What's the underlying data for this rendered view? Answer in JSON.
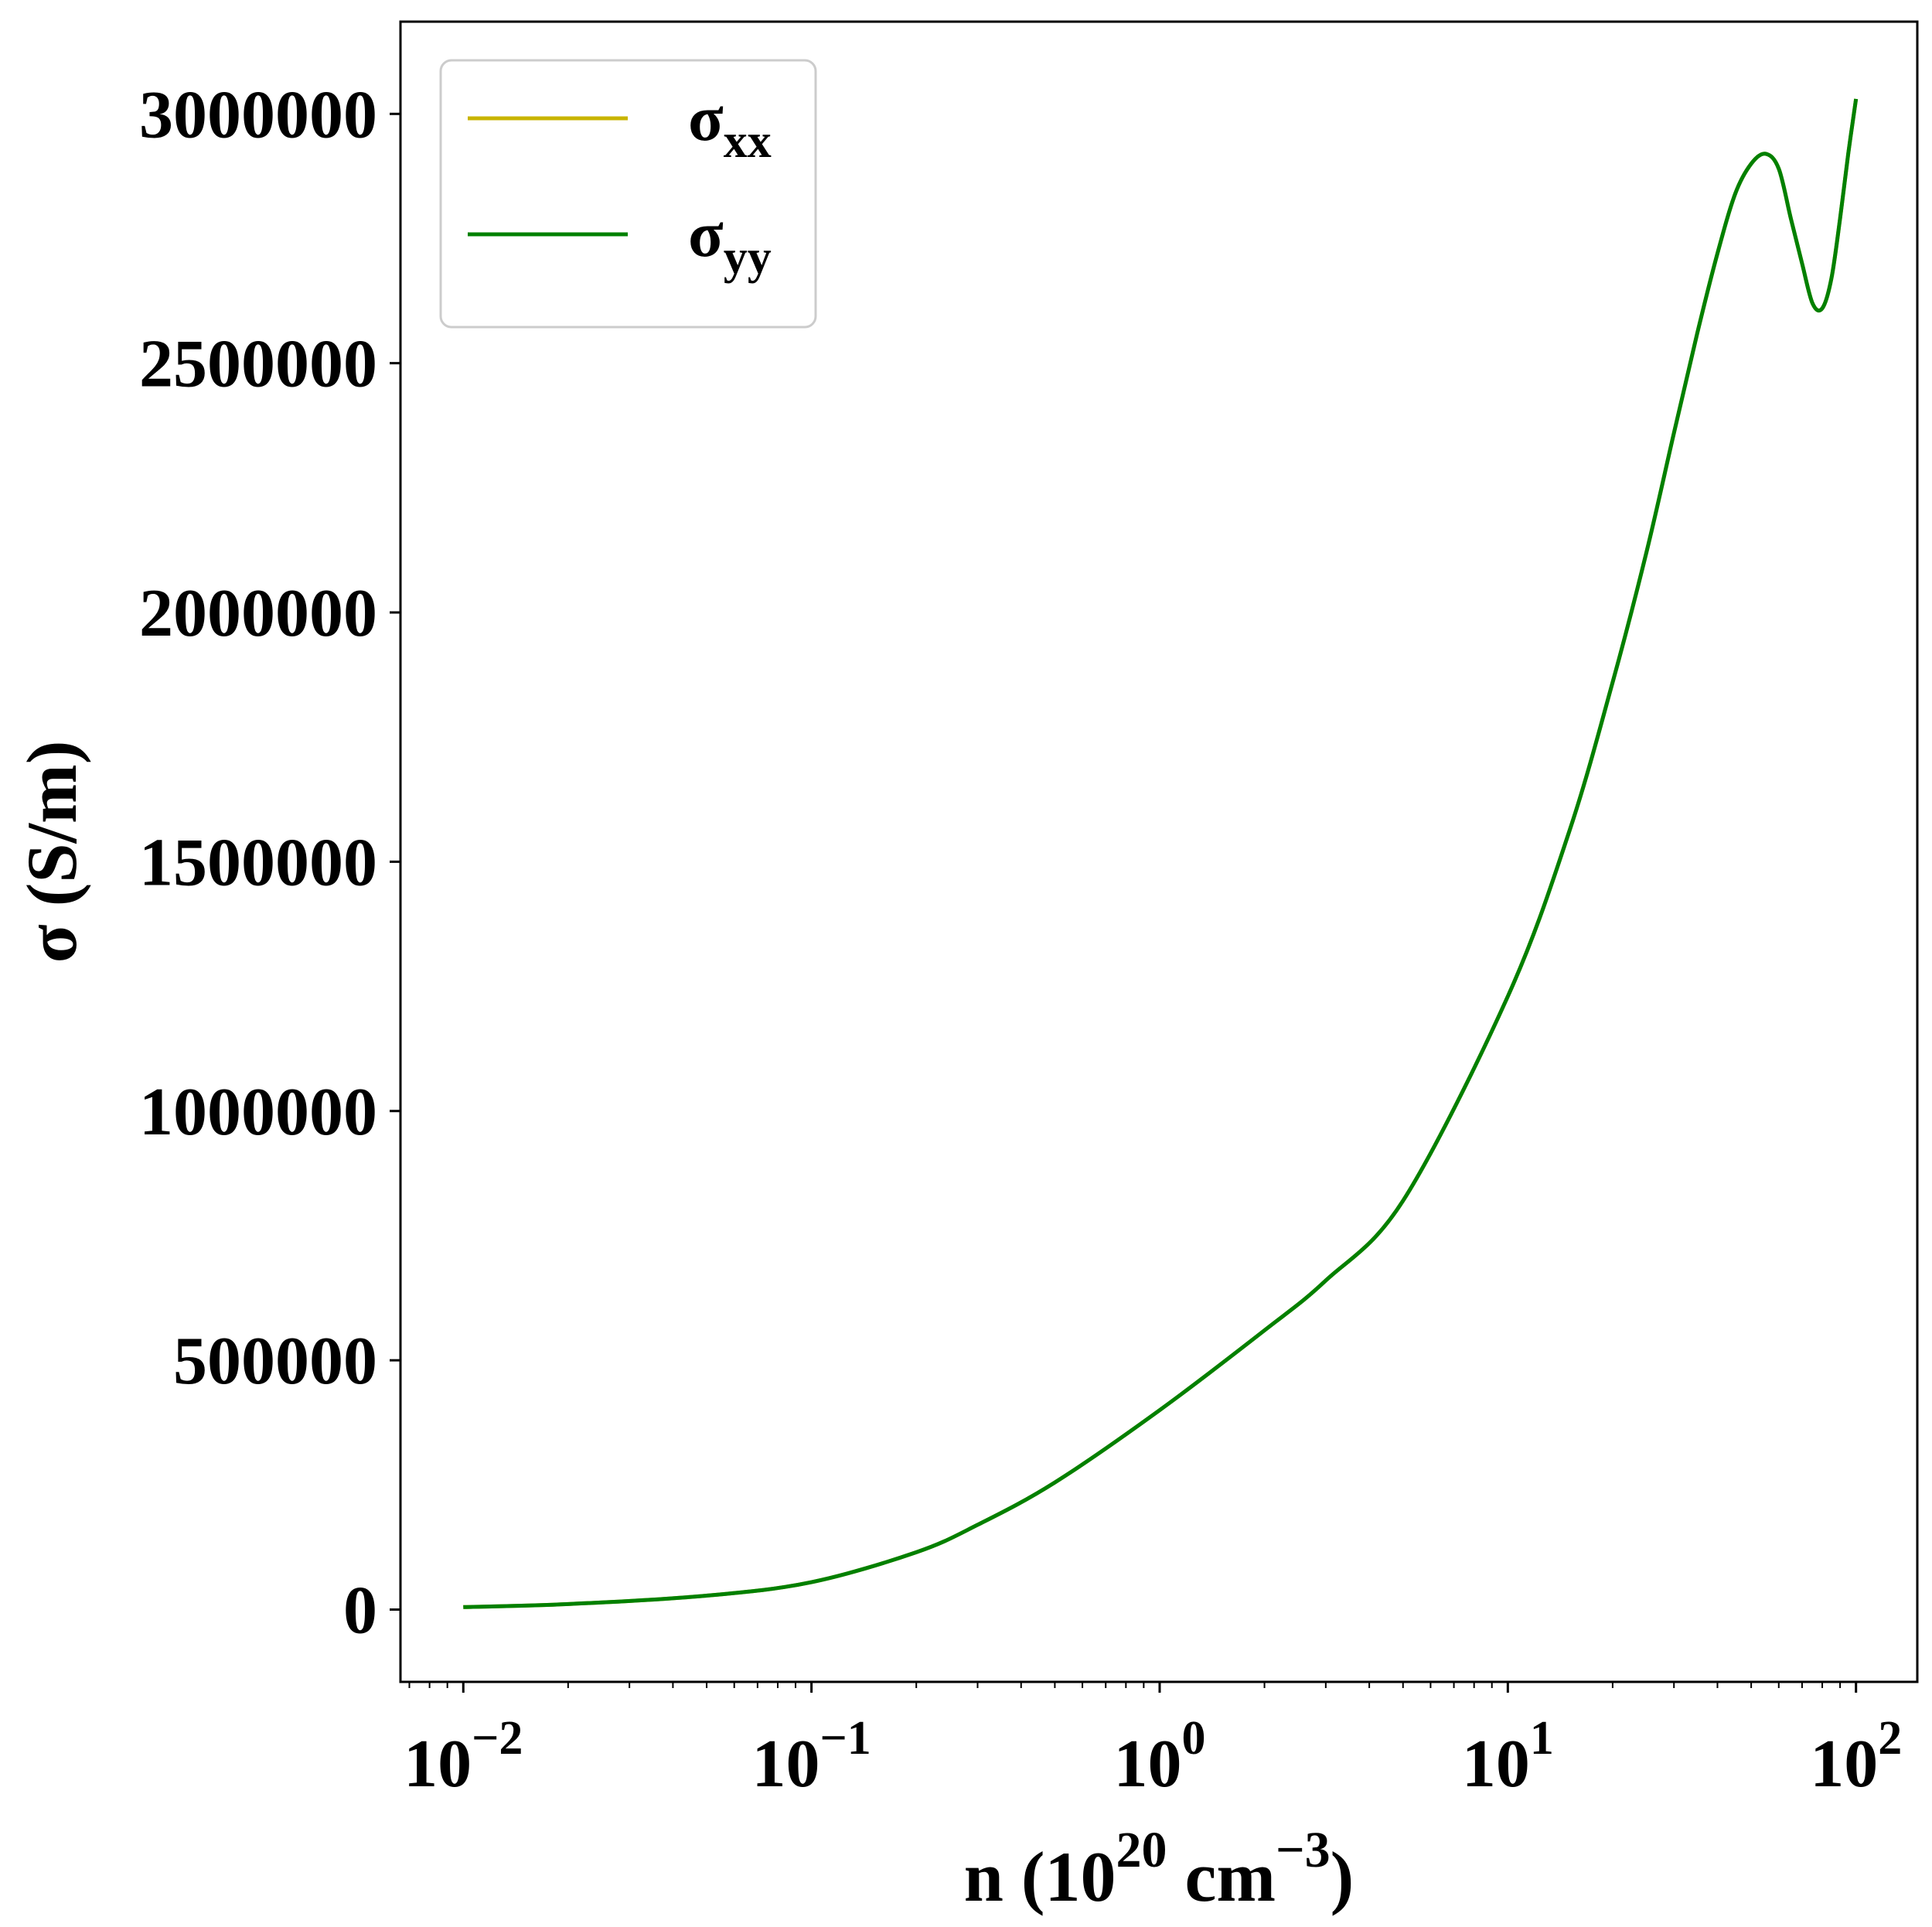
{
  "chart_data": {
    "type": "line",
    "xscale": "log",
    "xlim": [
      0.0066,
      150
    ],
    "ylim": [
      -145000,
      3185000
    ],
    "xlabel": {
      "base": "n (10",
      "sup1": "20",
      "mid": " cm",
      "sup2": "−3",
      "end": ")"
    },
    "ylabel": "σ (S/m)",
    "xticks": [
      {
        "value": 0.01,
        "base": "10",
        "exp": "−2"
      },
      {
        "value": 0.1,
        "base": "10",
        "exp": "−1"
      },
      {
        "value": 1,
        "base": "10",
        "exp": "0"
      },
      {
        "value": 10,
        "base": "10",
        "exp": "1"
      },
      {
        "value": 100,
        "base": "10",
        "exp": "2"
      }
    ],
    "yticks": [
      {
        "value": 0,
        "label": "0"
      },
      {
        "value": 500000,
        "label": "500000"
      },
      {
        "value": 1000000,
        "label": "1000000"
      },
      {
        "value": 1500000,
        "label": "1500000"
      },
      {
        "value": 2000000,
        "label": "2000000"
      },
      {
        "value": 2500000,
        "label": "2500000"
      },
      {
        "value": 3000000,
        "label": "3000000"
      }
    ],
    "legend_placement": "upper-left",
    "grid": false,
    "series": [
      {
        "name": "σxx",
        "legend": {
          "main": "σ",
          "sub": "xx"
        },
        "color": "#c8b400",
        "x": [
          0.01,
          0.02,
          0.05,
          0.1,
          0.2,
          0.3,
          0.5,
          1,
          2,
          3,
          5,
          10,
          15,
          20,
          25,
          30,
          35,
          40,
          45,
          50,
          55,
          60,
          65,
          70,
          75,
          80,
          85,
          90,
          95,
          100
        ],
        "y": [
          5000,
          11000,
          28000,
          55000,
          115000,
          170000,
          255000,
          400000,
          560000,
          660000,
          820000,
          1230000,
          1560000,
          1860000,
          2120000,
          2360000,
          2560000,
          2720000,
          2840000,
          2900000,
          2920000,
          2890000,
          2790000,
          2700000,
          2620000,
          2610000,
          2670000,
          2790000,
          2920000,
          3030000
        ]
      },
      {
        "name": "σyy",
        "legend": {
          "main": "σ",
          "sub": "yy"
        },
        "color": "#008000",
        "x": [
          0.01,
          0.02,
          0.05,
          0.1,
          0.2,
          0.3,
          0.5,
          1,
          2,
          3,
          5,
          10,
          15,
          20,
          25,
          30,
          35,
          40,
          45,
          50,
          55,
          60,
          65,
          70,
          75,
          80,
          85,
          90,
          95,
          100
        ],
        "y": [
          5000,
          11000,
          28000,
          55000,
          115000,
          170000,
          255000,
          400000,
          560000,
          660000,
          820000,
          1230000,
          1560000,
          1860000,
          2120000,
          2360000,
          2560000,
          2720000,
          2840000,
          2900000,
          2920000,
          2890000,
          2790000,
          2700000,
          2620000,
          2610000,
          2670000,
          2790000,
          2920000,
          3030000
        ]
      }
    ]
  }
}
